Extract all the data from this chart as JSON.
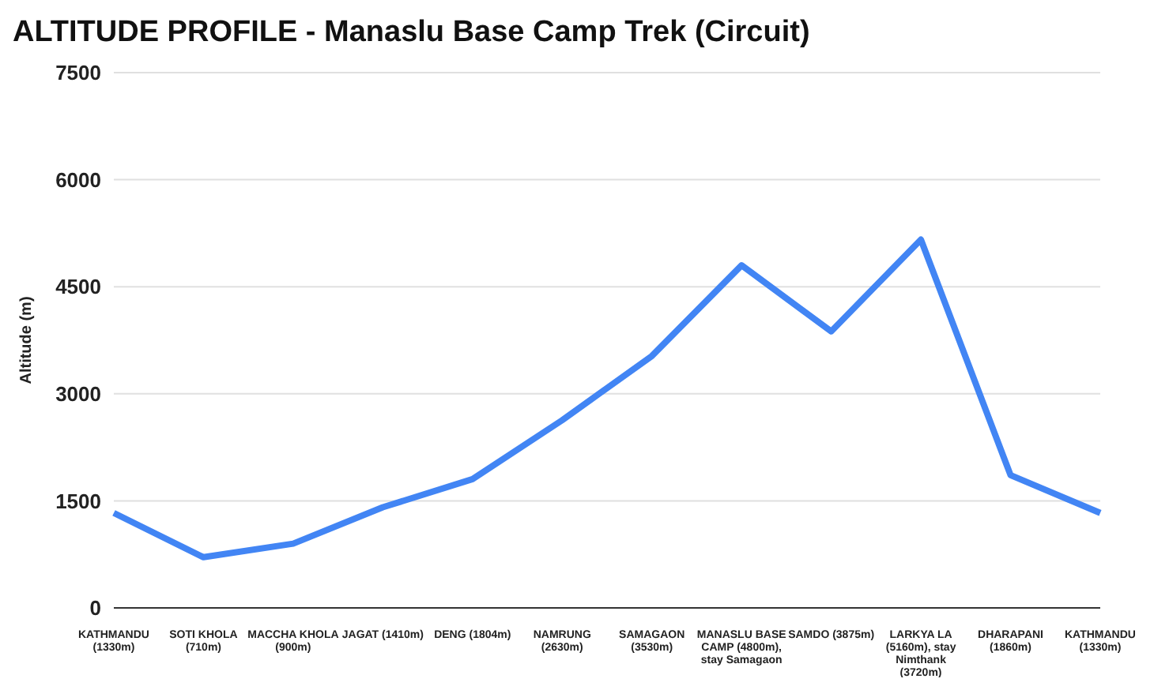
{
  "chart_data": {
    "type": "line",
    "title": "ALTITUDE PROFILE - Manaslu Base Camp Trek (Circuit)",
    "ylabel": "Altitude (m)",
    "categories": [
      "KATHMANDU (1330m)",
      "SOTI KHOLA (710m)",
      "MACCHA KHOLA (900m)",
      "JAGAT (1410m)",
      "DENG (1804m)",
      "NAMRUNG (2630m)",
      "SAMAGAON (3530m)",
      "MANASLU BASE CAMP (4800m), stay Samagaon",
      "SAMDO (3875m)",
      "LARKYA LA (5160m), stay Nimthank (3720m)",
      "DHARAPANI (1860m)",
      "KATHMANDU (1330m)"
    ],
    "series": [
      {
        "color": "#4285f4",
        "values": [
          1330,
          710,
          900,
          1410,
          1804,
          2630,
          3530,
          4800,
          3875,
          5160,
          1860,
          1330
        ]
      }
    ],
    "ylim": [
      0,
      7500
    ],
    "yticks": [
      0,
      1500,
      3000,
      4500,
      6000,
      7500
    ],
    "grid": "y",
    "legend": false,
    "marker": "none",
    "line_style": "solid"
  }
}
